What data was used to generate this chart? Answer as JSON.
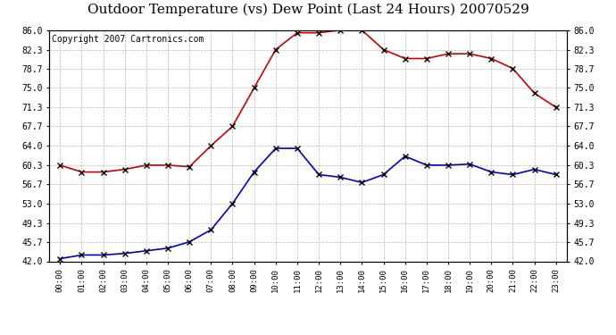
{
  "title": "Outdoor Temperature (vs) Dew Point (Last 24 Hours) 20070529",
  "copyright": "Copyright 2007 Cartronics.com",
  "x_labels": [
    "00:00",
    "01:00",
    "02:00",
    "03:00",
    "04:00",
    "05:00",
    "06:00",
    "07:00",
    "08:00",
    "09:00",
    "10:00",
    "11:00",
    "12:00",
    "13:00",
    "14:00",
    "15:00",
    "16:00",
    "17:00",
    "18:00",
    "19:00",
    "20:00",
    "21:00",
    "22:00",
    "23:00"
  ],
  "temp_data": [
    60.3,
    59.0,
    59.0,
    59.5,
    60.3,
    60.3,
    60.0,
    64.0,
    67.7,
    75.0,
    82.3,
    85.5,
    85.5,
    86.0,
    86.0,
    82.3,
    80.6,
    80.6,
    81.5,
    81.5,
    80.6,
    78.7,
    74.0,
    71.3
  ],
  "dew_data": [
    42.5,
    43.2,
    43.2,
    43.5,
    44.0,
    44.5,
    45.7,
    48.0,
    53.0,
    59.0,
    63.5,
    63.5,
    58.5,
    58.0,
    57.0,
    58.5,
    62.0,
    60.3,
    60.3,
    60.5,
    59.0,
    58.5,
    59.5,
    58.5
  ],
  "temp_color": "#cc0000",
  "dew_color": "#0000cc",
  "y_ticks": [
    42.0,
    45.7,
    49.3,
    53.0,
    56.7,
    60.3,
    64.0,
    67.7,
    71.3,
    75.0,
    78.7,
    82.3,
    86.0
  ],
  "y_min": 42.0,
  "y_max": 86.0,
  "bg_color": "#ffffff",
  "plot_bg_color": "#ffffff",
  "grid_color": "#b0b0b0",
  "title_fontsize": 11,
  "copyright_fontsize": 7,
  "marker_color": "#000000"
}
